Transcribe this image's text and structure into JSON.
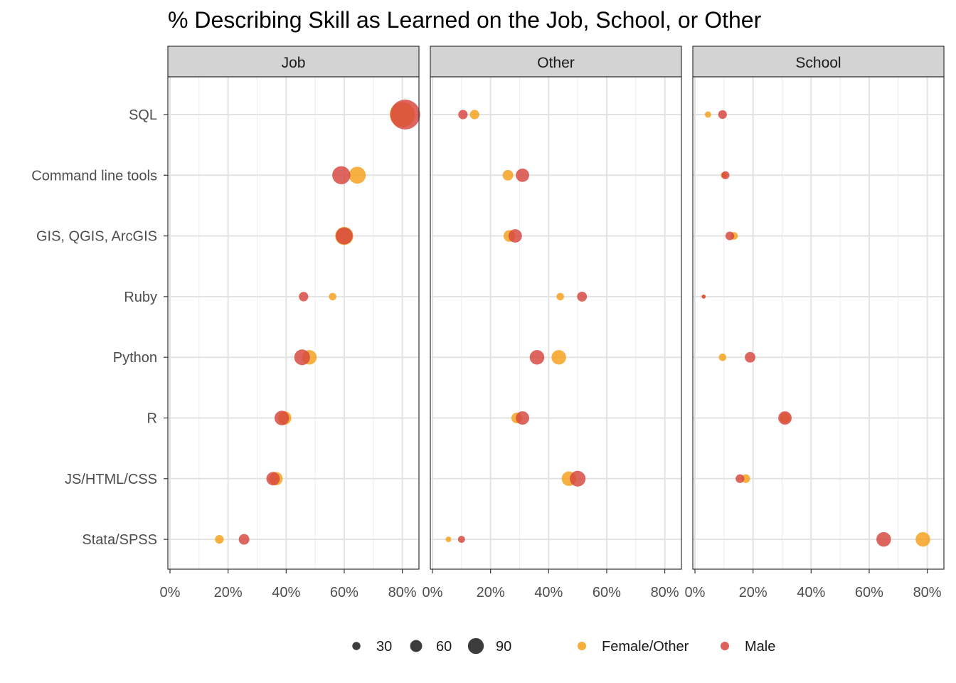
{
  "chart_data": {
    "type": "scatter",
    "title": "% Describing Skill as Learned on the Job, School, or Other",
    "xlabel": "",
    "ylabel": "",
    "xlim": [
      0,
      85
    ],
    "x_ticks": [
      0,
      20,
      40,
      60,
      80
    ],
    "x_tick_labels": [
      "0%",
      "20%",
      "40%",
      "60%",
      "80%"
    ],
    "grid": true,
    "facets": [
      "Job",
      "Other",
      "School"
    ],
    "categories": [
      "SQL",
      "Command line tools",
      "GIS, QGIS, ArcGIS",
      "Ruby",
      "Python",
      "R",
      "JS/HTML/CSS",
      "Stata/SPSS"
    ],
    "size_legend": {
      "values": [
        30,
        60,
        90
      ],
      "labels": [
        "30",
        "60",
        "90"
      ]
    },
    "color_legend": {
      "items": [
        {
          "label": "Female/Other",
          "color": "#F5A01A"
        },
        {
          "label": "Male",
          "color": "#D6453D"
        }
      ]
    },
    "series": [
      {
        "name": "Female/Other",
        "color": "#F5A01A",
        "points": [
          {
            "facet": "Job",
            "category": "SQL",
            "x": 80,
            "size": 95
          },
          {
            "facet": "Job",
            "category": "Command line tools",
            "x": 64.5,
            "size": 60
          },
          {
            "facet": "Job",
            "category": "GIS, QGIS, ArcGIS",
            "x": 60,
            "size": 65
          },
          {
            "facet": "Job",
            "category": "Ruby",
            "x": 56,
            "size": 20
          },
          {
            "facet": "Job",
            "category": "Python",
            "x": 48,
            "size": 50
          },
          {
            "facet": "Job",
            "category": "R",
            "x": 39.5,
            "size": 45
          },
          {
            "facet": "Job",
            "category": "JS/HTML/CSS",
            "x": 36.5,
            "size": 45
          },
          {
            "facet": "Job",
            "category": "Stata/SPSS",
            "x": 17,
            "size": 25
          },
          {
            "facet": "Other",
            "category": "SQL",
            "x": 14.5,
            "size": 28
          },
          {
            "facet": "Other",
            "category": "Command line tools",
            "x": 26,
            "size": 33
          },
          {
            "facet": "Other",
            "category": "GIS, QGIS, ArcGIS",
            "x": 26.5,
            "size": 38
          },
          {
            "facet": "Other",
            "category": "Ruby",
            "x": 44,
            "size": 20
          },
          {
            "facet": "Other",
            "category": "Python",
            "x": 43.5,
            "size": 50
          },
          {
            "facet": "Other",
            "category": "R",
            "x": 29,
            "size": 33
          },
          {
            "facet": "Other",
            "category": "JS/HTML/CSS",
            "x": 47,
            "size": 50
          },
          {
            "facet": "Other",
            "category": "Stata/SPSS",
            "x": 5.5,
            "size": 12
          },
          {
            "facet": "School",
            "category": "SQL",
            "x": 4.5,
            "size": 15
          },
          {
            "facet": "School",
            "category": "Command line tools",
            "x": 10,
            "size": 15
          },
          {
            "facet": "School",
            "category": "GIS, QGIS, ArcGIS",
            "x": 13.5,
            "size": 20
          },
          {
            "facet": "School",
            "category": "Ruby",
            "x": 3,
            "size": 5
          },
          {
            "facet": "School",
            "category": "Python",
            "x": 9.5,
            "size": 20
          },
          {
            "facet": "School",
            "category": "R",
            "x": 31,
            "size": 33
          },
          {
            "facet": "School",
            "category": "JS/HTML/CSS",
            "x": 17.5,
            "size": 25
          },
          {
            "facet": "School",
            "category": "Stata/SPSS",
            "x": 78.5,
            "size": 50
          }
        ]
      },
      {
        "name": "Male",
        "color": "#D6453D",
        "points": [
          {
            "facet": "Job",
            "category": "SQL",
            "x": 81,
            "size": 115
          },
          {
            "facet": "Job",
            "category": "Command line tools",
            "x": 59,
            "size": 65
          },
          {
            "facet": "Job",
            "category": "GIS, QGIS, ArcGIS",
            "x": 60,
            "size": 60
          },
          {
            "facet": "Job",
            "category": "Ruby",
            "x": 46,
            "size": 28
          },
          {
            "facet": "Job",
            "category": "Python",
            "x": 45.5,
            "size": 55
          },
          {
            "facet": "Job",
            "category": "R",
            "x": 38.5,
            "size": 50
          },
          {
            "facet": "Job",
            "category": "JS/HTML/CSS",
            "x": 35.5,
            "size": 45
          },
          {
            "facet": "Job",
            "category": "Stata/SPSS",
            "x": 25.5,
            "size": 33
          },
          {
            "facet": "Other",
            "category": "SQL",
            "x": 10.5,
            "size": 28
          },
          {
            "facet": "Other",
            "category": "Command line tools",
            "x": 31,
            "size": 45
          },
          {
            "facet": "Other",
            "category": "GIS, QGIS, ArcGIS",
            "x": 28.5,
            "size": 45
          },
          {
            "facet": "Other",
            "category": "Ruby",
            "x": 51.5,
            "size": 30
          },
          {
            "facet": "Other",
            "category": "Python",
            "x": 36,
            "size": 50
          },
          {
            "facet": "Other",
            "category": "R",
            "x": 31,
            "size": 45
          },
          {
            "facet": "Other",
            "category": "JS/HTML/CSS",
            "x": 50,
            "size": 55
          },
          {
            "facet": "Other",
            "category": "Stata/SPSS",
            "x": 10,
            "size": 18
          },
          {
            "facet": "School",
            "category": "SQL",
            "x": 9.5,
            "size": 25
          },
          {
            "facet": "School",
            "category": "Command line tools",
            "x": 10.5,
            "size": 22
          },
          {
            "facet": "School",
            "category": "GIS, QGIS, ArcGIS",
            "x": 12,
            "size": 25
          },
          {
            "facet": "School",
            "category": "Ruby",
            "x": 3,
            "size": 5
          },
          {
            "facet": "School",
            "category": "Python",
            "x": 19,
            "size": 33
          },
          {
            "facet": "School",
            "category": "R",
            "x": 31,
            "size": 45
          },
          {
            "facet": "School",
            "category": "JS/HTML/CSS",
            "x": 15.5,
            "size": 25
          },
          {
            "facet": "School",
            "category": "Stata/SPSS",
            "x": 65,
            "size": 50
          }
        ]
      }
    ]
  }
}
